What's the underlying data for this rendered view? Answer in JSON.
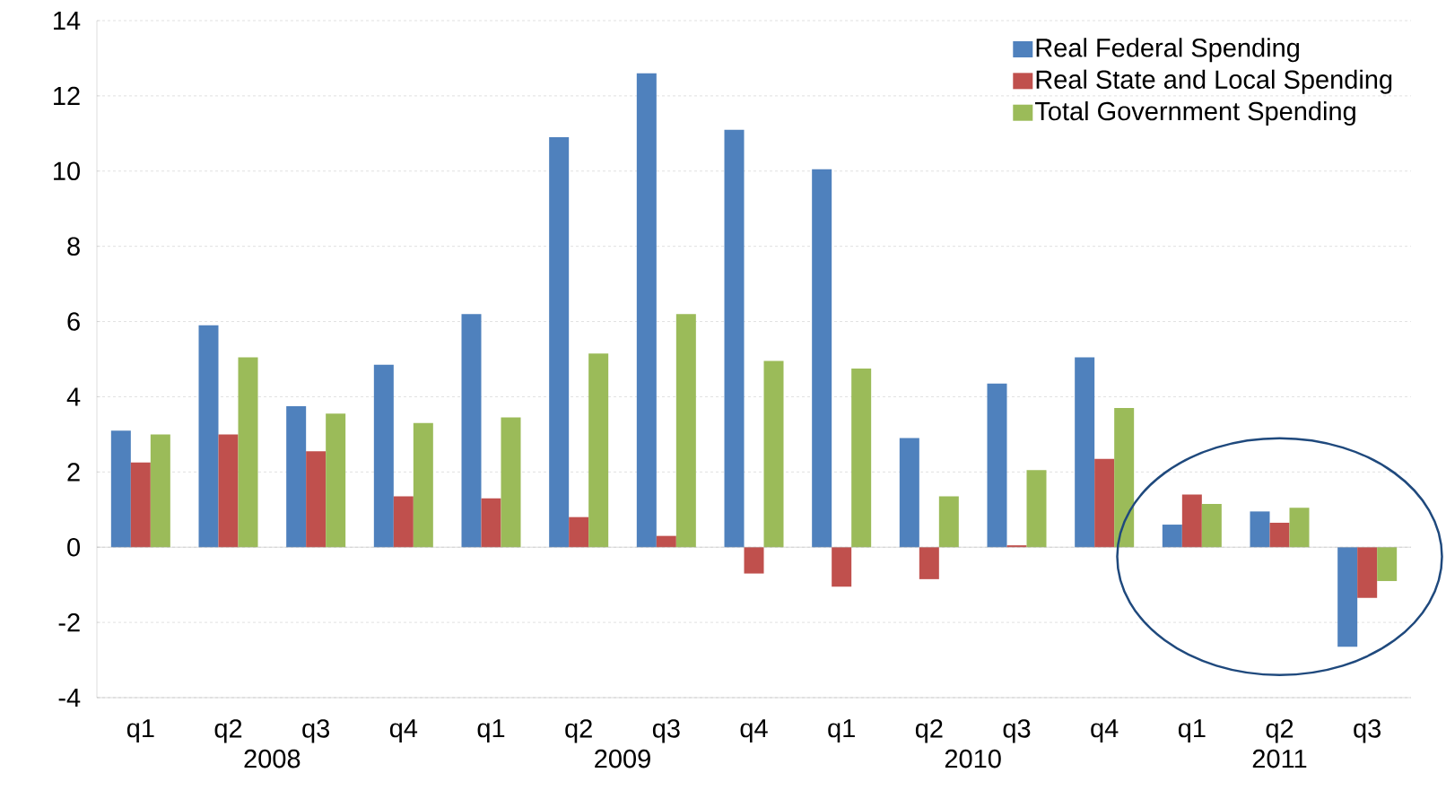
{
  "chart_data": {
    "type": "bar",
    "categories": [
      "q1",
      "q2",
      "q3",
      "q4",
      "q1",
      "q2",
      "q3",
      "q4",
      "q1",
      "q2",
      "q3",
      "q4",
      "q1",
      "q2",
      "q3"
    ],
    "series": [
      {
        "name": "Real Federal Spending",
        "color": "#4f81bd",
        "values": [
          3.1,
          5.9,
          3.75,
          4.85,
          6.2,
          10.9,
          12.6,
          11.1,
          10.05,
          2.9,
          4.35,
          5.05,
          0.6,
          0.95,
          -2.65
        ]
      },
      {
        "name": "Real State and Local Spending",
        "color": "#c0504d",
        "values": [
          2.25,
          3.0,
          2.55,
          1.35,
          1.3,
          0.8,
          0.3,
          -0.7,
          -1.05,
          -0.85,
          0.05,
          2.35,
          1.4,
          0.65,
          -1.35
        ]
      },
      {
        "name": "Total Government Spending",
        "color": "#9bbb59",
        "values": [
          3.0,
          5.05,
          3.55,
          3.3,
          3.45,
          5.15,
          6.2,
          4.95,
          4.75,
          1.35,
          2.05,
          3.7,
          1.15,
          1.05,
          -0.9
        ]
      }
    ],
    "ylim": [
      -4,
      14
    ],
    "yticks": [
      -4,
      -2,
      0,
      2,
      4,
      6,
      8,
      10,
      12,
      14
    ],
    "grid": "y",
    "legend": "top right",
    "annotations": [
      "2008",
      "2009",
      "2010",
      "2011"
    ]
  }
}
